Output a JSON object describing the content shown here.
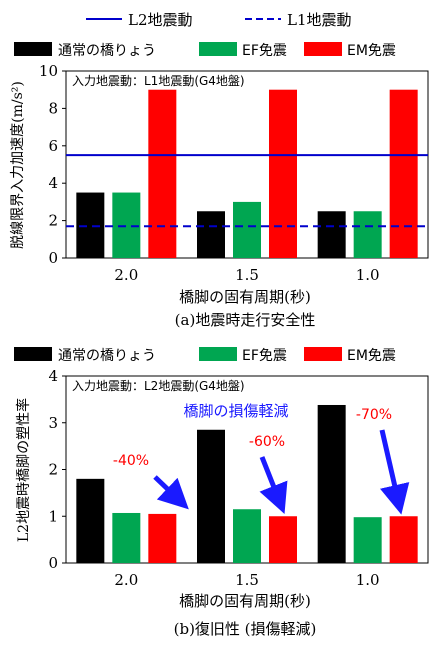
{
  "chart_data": [
    {
      "type": "bar",
      "title": "",
      "caption": "(a)地震時走行安全性",
      "xlabel": "橋脚の固有周期(秒)",
      "ylabel": "脱線限界入力加速度(m/s²)",
      "ylim": [
        0,
        10
      ],
      "yticks": [
        "0",
        "2",
        "4",
        "6",
        "8",
        "10"
      ],
      "categories": [
        "2.0",
        "1.5",
        "1.0"
      ],
      "series": [
        {
          "name": "通常の橋りょう",
          "color": "#000000",
          "values": [
            3.5,
            2.5,
            2.5
          ]
        },
        {
          "name": "EF免震",
          "color": "#00a651",
          "values": [
            3.5,
            3.0,
            2.5
          ]
        },
        {
          "name": "EM免震",
          "color": "#ff0000",
          "values": [
            9.0,
            9.0,
            9.0
          ]
        }
      ],
      "reference_lines": [
        {
          "name": "L2地震動",
          "color": "#0000cc",
          "style": "solid",
          "value": 5.5
        },
        {
          "name": "L1地震動",
          "color": "#0000cc",
          "style": "dashed",
          "value": 1.7
        }
      ],
      "annotation": "入力地震動：L1地震動(G4地盤)",
      "grid": false,
      "legend": "top"
    },
    {
      "type": "bar",
      "title": "",
      "caption": "(b)復旧性 (損傷軽減)",
      "xlabel": "橋脚の固有周期(秒)",
      "ylabel": "L2地震時橋脚の塑性率",
      "ylim": [
        0,
        4
      ],
      "yticks": [
        "0",
        "1",
        "2",
        "3",
        "4"
      ],
      "categories": [
        "2.0",
        "1.5",
        "1.0"
      ],
      "series": [
        {
          "name": "通常の橋りょう",
          "color": "#000000",
          "values": [
            1.8,
            2.85,
            3.38
          ]
        },
        {
          "name": "EF免震",
          "color": "#00a651",
          "values": [
            1.07,
            1.15,
            0.98
          ]
        },
        {
          "name": "EM免震",
          "color": "#ff0000",
          "values": [
            1.05,
            1.0,
            1.0
          ]
        }
      ],
      "annotation": "入力地震動：L2地震動(G4地盤)",
      "subtitle_note": "橋脚の損傷軽減",
      "reductions": [
        "-40%",
        "-60%",
        "-70%"
      ],
      "grid": false,
      "legend": "top"
    }
  ]
}
